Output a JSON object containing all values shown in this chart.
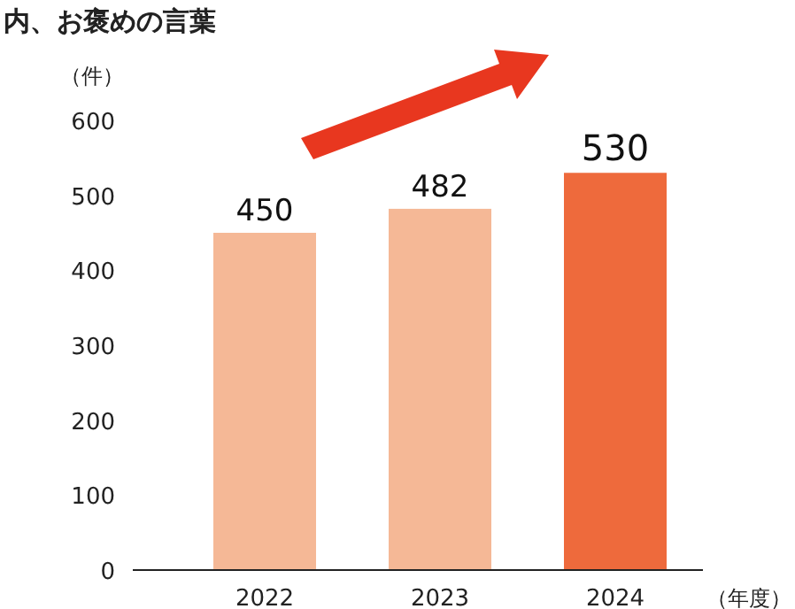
{
  "chart_data": {
    "type": "bar",
    "title": "内、お褒めの言葉",
    "ylabel": "（件）",
    "xlabel": "（年度）",
    "categories": [
      "2022",
      "2023",
      "2024"
    ],
    "values": [
      450,
      482,
      530
    ],
    "colors": [
      "#f5b896",
      "#f5b896",
      "#ee6a3c"
    ],
    "ylim": [
      0,
      600
    ],
    "yticks": [
      0,
      100,
      200,
      300,
      400,
      500,
      600
    ],
    "data_labels": true
  }
}
